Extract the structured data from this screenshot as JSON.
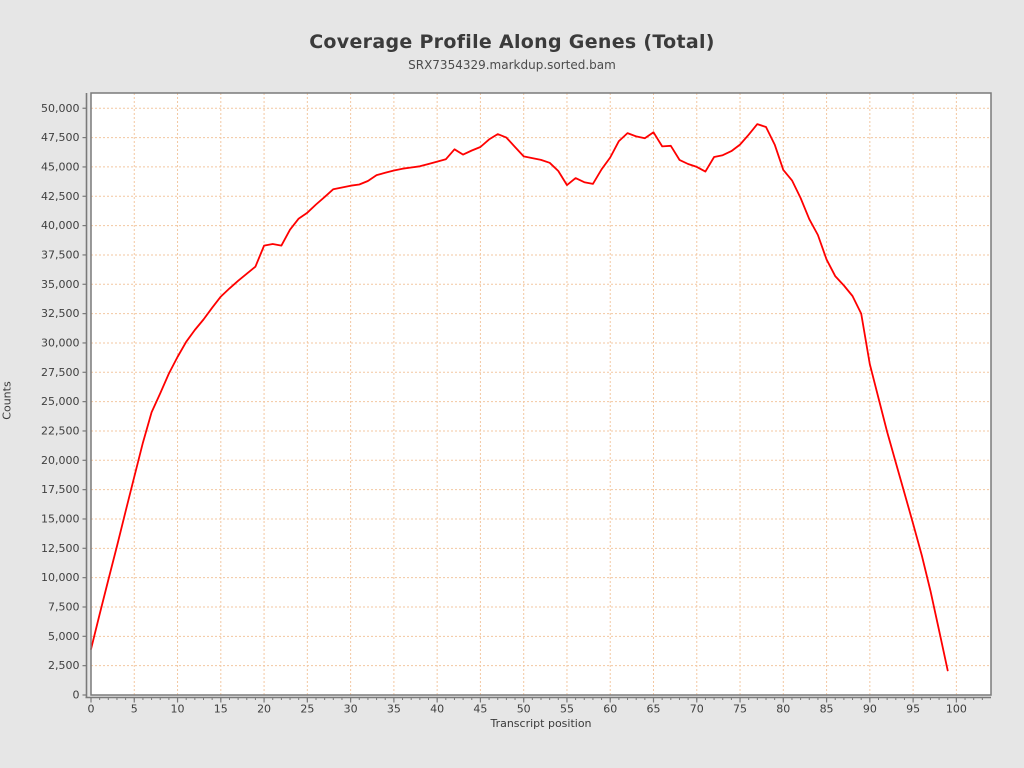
{
  "header": {
    "title": "Coverage Profile Along Genes (Total)",
    "subtitle": "SRX7354329.markdup.sorted.bam"
  },
  "chart_data": {
    "type": "line",
    "title": "Coverage Profile Along Genes (Total)",
    "subtitle": "SRX7354329.markdup.sorted.bam",
    "xlabel": "Transcript position",
    "ylabel": "Counts",
    "xlim": [
      0,
      104
    ],
    "ylim": [
      0,
      51300
    ],
    "grid": true,
    "grid_style": "dashed",
    "legend_position": "none",
    "x_major_ticks": [
      0,
      5,
      10,
      15,
      20,
      25,
      30,
      35,
      40,
      45,
      50,
      55,
      60,
      65,
      70,
      75,
      80,
      85,
      90,
      95,
      100
    ],
    "x_tick_labels": [
      "0",
      "5",
      "10",
      "15",
      "20",
      "25",
      "30",
      "35",
      "40",
      "45",
      "50",
      "55",
      "60",
      "65",
      "70",
      "75",
      "80",
      "85",
      "90",
      "95",
      "100"
    ],
    "x_minor_tick_step": 1,
    "x_minor_tick_max": 103,
    "y_ticks": [
      0,
      2500,
      5000,
      7500,
      10000,
      12500,
      15000,
      17500,
      20000,
      22500,
      25000,
      27500,
      30000,
      32500,
      35000,
      37500,
      40000,
      42500,
      45000,
      47500,
      50000
    ],
    "y_tick_labels": [
      "0",
      "2,500",
      "5,000",
      "7,500",
      "10,000",
      "12,500",
      "15,000",
      "17,500",
      "20,000",
      "22,500",
      "25,000",
      "27,500",
      "30,000",
      "32,500",
      "35,000",
      "37,500",
      "40,000",
      "42,500",
      "45,000",
      "47,500",
      "50,000"
    ],
    "series": [
      {
        "name": "SRX7354329.markdup.sorted.bam",
        "color": "#ff0000",
        "x": [
          0,
          1,
          2,
          3,
          4,
          5,
          6,
          7,
          8,
          9,
          10,
          11,
          12,
          13,
          14,
          15,
          16,
          17,
          18,
          19,
          20,
          21,
          22,
          23,
          24,
          25,
          26,
          27,
          28,
          29,
          30,
          31,
          32,
          33,
          34,
          35,
          36,
          37,
          38,
          39,
          40,
          41,
          42,
          43,
          44,
          45,
          46,
          47,
          48,
          49,
          50,
          51,
          52,
          53,
          54,
          55,
          56,
          57,
          58,
          59,
          60,
          61,
          62,
          63,
          64,
          65,
          66,
          67,
          68,
          69,
          70,
          71,
          72,
          73,
          74,
          75,
          76,
          77,
          78,
          79,
          80,
          81,
          82,
          83,
          84,
          85,
          86,
          87,
          88,
          89,
          90,
          91,
          92,
          93,
          94,
          95,
          96,
          97,
          98,
          99
        ],
        "values": [
          3900,
          6900,
          9800,
          12700,
          15650,
          18600,
          21500,
          24100,
          25700,
          27400,
          28800,
          30100,
          31100,
          32000,
          33000,
          33950,
          34650,
          35300,
          35900,
          36500,
          38300,
          38430,
          38300,
          39650,
          40600,
          41100,
          41800,
          42450,
          43100,
          43250,
          43400,
          43500,
          43800,
          44300,
          44500,
          44700,
          44850,
          44950,
          45050,
          45250,
          45450,
          45650,
          46500,
          46050,
          46400,
          46700,
          47350,
          47800,
          47500,
          46700,
          45900,
          45750,
          45600,
          45350,
          44650,
          43450,
          44050,
          43700,
          43550,
          44800,
          45800,
          47200,
          47880,
          47600,
          47450,
          47950,
          46750,
          46800,
          45600,
          45250,
          45000,
          44600,
          45850,
          46000,
          46350,
          46900,
          47750,
          48650,
          48400,
          46900,
          44750,
          43850,
          42350,
          40550,
          39200,
          37100,
          35700,
          34900,
          34000,
          32500,
          28200,
          25300,
          22400,
          19800,
          17200,
          14600,
          11900,
          8900,
          5500,
          2100
        ]
      }
    ],
    "colors": {
      "line": "#ff0000",
      "gridline": "#f3c7a1",
      "plot_background": "#ffffff",
      "page_background": "#e6e6e6",
      "axis": "#7a7a7a",
      "tick_label": "#3f3f3f"
    }
  }
}
